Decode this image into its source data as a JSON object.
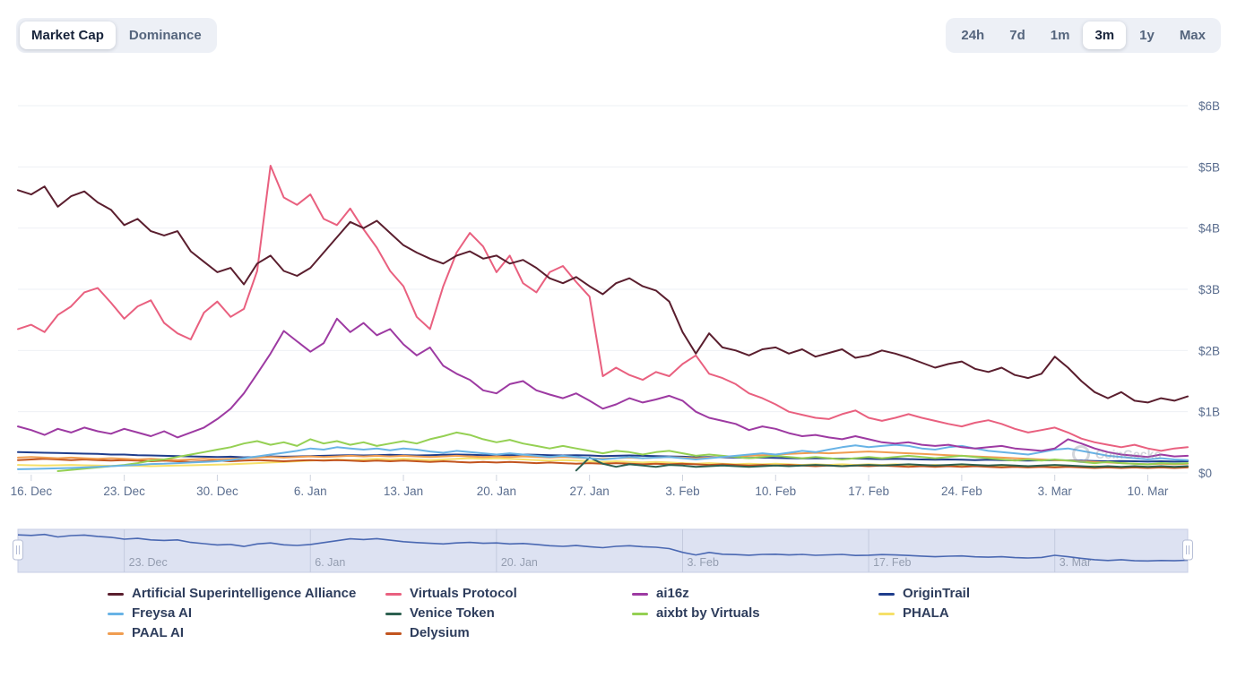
{
  "view_toggle": {
    "options": [
      {
        "label": "Market Cap",
        "active": true
      },
      {
        "label": "Dominance",
        "active": false
      }
    ]
  },
  "range_toggle": {
    "options": [
      {
        "label": "24h",
        "active": false
      },
      {
        "label": "7d",
        "active": false
      },
      {
        "label": "1m",
        "active": false
      },
      {
        "label": "3m",
        "active": true
      },
      {
        "label": "1y",
        "active": false
      },
      {
        "label": "Max",
        "active": false
      }
    ]
  },
  "watermark": {
    "label": "CoinGecko"
  },
  "colors": {
    "grid": "#eef0f4",
    "axis_label": "#5b6e8f",
    "tick": "#cdd3de",
    "legend_text": "#2e3d5c",
    "nav_bg": "#dde2f2",
    "nav_border": "#c7cde4",
    "nav_line": "#4a68b2",
    "nav_label": "#949db0",
    "nav_grid": "#c3cade",
    "handle_fill": "#ffffff",
    "handle_border": "#b6bed6"
  },
  "chart_data": {
    "type": "line",
    "title": "",
    "xlabel": "",
    "ylabel": "",
    "y_unit": "USD billions",
    "ylim": [
      0,
      6.2
    ],
    "grid": true,
    "legend_position": "bottom",
    "points_per_series": 89,
    "x_start": "15. Dec",
    "x_end": "13. Mar",
    "y_ticks": [
      {
        "v": 0,
        "label": "$0"
      },
      {
        "v": 1,
        "label": "$1B"
      },
      {
        "v": 2,
        "label": "$2B"
      },
      {
        "v": 3,
        "label": "$3B"
      },
      {
        "v": 4,
        "label": "$4B"
      },
      {
        "v": 5,
        "label": "$5B"
      },
      {
        "v": 6,
        "label": "$6B"
      }
    ],
    "x_ticks": [
      {
        "i": 1,
        "label": "16. Dec"
      },
      {
        "i": 8,
        "label": "23. Dec"
      },
      {
        "i": 15,
        "label": "30. Dec"
      },
      {
        "i": 22,
        "label": "6. Jan"
      },
      {
        "i": 29,
        "label": "13. Jan"
      },
      {
        "i": 36,
        "label": "20. Jan"
      },
      {
        "i": 43,
        "label": "27. Jan"
      },
      {
        "i": 50,
        "label": "3. Feb"
      },
      {
        "i": 57,
        "label": "10. Feb"
      },
      {
        "i": 64,
        "label": "17. Feb"
      },
      {
        "i": 71,
        "label": "24. Feb"
      },
      {
        "i": 78,
        "label": "3. Mar"
      },
      {
        "i": 85,
        "label": "10. Mar"
      }
    ],
    "legend_columns": [
      [
        0,
        4,
        8
      ],
      [
        1,
        5,
        9
      ],
      [
        2,
        6
      ],
      [
        3,
        7
      ]
    ],
    "series": [
      {
        "name": "Artificial Superintelligence Alliance",
        "color": "#5a1e2e",
        "values": [
          4.62,
          4.55,
          4.68,
          4.35,
          4.52,
          4.6,
          4.42,
          4.3,
          4.05,
          4.15,
          3.95,
          3.88,
          3.95,
          3.62,
          3.45,
          3.28,
          3.35,
          3.08,
          3.42,
          3.55,
          3.3,
          3.22,
          3.35,
          3.6,
          3.85,
          4.1,
          4.0,
          4.12,
          3.92,
          3.72,
          3.6,
          3.5,
          3.42,
          3.55,
          3.62,
          3.5,
          3.55,
          3.42,
          3.48,
          3.35,
          3.18,
          3.1,
          3.2,
          3.05,
          2.92,
          3.1,
          3.18,
          3.05,
          2.98,
          2.8,
          2.3,
          1.95,
          2.28,
          2.05,
          2.0,
          1.92,
          2.02,
          2.05,
          1.95,
          2.02,
          1.9,
          1.96,
          2.02,
          1.88,
          1.92,
          2.0,
          1.95,
          1.88,
          1.8,
          1.72,
          1.78,
          1.82,
          1.7,
          1.65,
          1.72,
          1.6,
          1.55,
          1.62,
          1.9,
          1.72,
          1.5,
          1.32,
          1.22,
          1.32,
          1.18,
          1.15,
          1.22,
          1.18,
          1.25
        ]
      },
      {
        "name": "Virtuals Protocol",
        "color": "#e9607f",
        "values": [
          2.35,
          2.42,
          2.3,
          2.58,
          2.72,
          2.95,
          3.02,
          2.78,
          2.52,
          2.72,
          2.82,
          2.45,
          2.28,
          2.18,
          2.62,
          2.8,
          2.55,
          2.68,
          3.3,
          5.02,
          4.5,
          4.38,
          4.55,
          4.15,
          4.05,
          4.32,
          3.98,
          3.68,
          3.3,
          3.05,
          2.55,
          2.35,
          3.05,
          3.6,
          3.92,
          3.7,
          3.28,
          3.55,
          3.1,
          2.95,
          3.28,
          3.38,
          3.12,
          2.88,
          1.58,
          1.72,
          1.6,
          1.52,
          1.65,
          1.58,
          1.78,
          1.92,
          1.62,
          1.55,
          1.45,
          1.3,
          1.22,
          1.12,
          1.0,
          0.95,
          0.9,
          0.88,
          0.96,
          1.02,
          0.9,
          0.85,
          0.9,
          0.96,
          0.9,
          0.85,
          0.8,
          0.76,
          0.82,
          0.86,
          0.8,
          0.72,
          0.66,
          0.7,
          0.74,
          0.66,
          0.56,
          0.5,
          0.46,
          0.42,
          0.46,
          0.4,
          0.36,
          0.4,
          0.42
        ]
      },
      {
        "name": "ai16z",
        "color": "#9d3aa2",
        "values": [
          0.76,
          0.7,
          0.62,
          0.72,
          0.66,
          0.74,
          0.68,
          0.64,
          0.72,
          0.66,
          0.6,
          0.68,
          0.58,
          0.66,
          0.74,
          0.88,
          1.05,
          1.3,
          1.62,
          1.95,
          2.32,
          2.15,
          1.98,
          2.12,
          2.52,
          2.3,
          2.45,
          2.25,
          2.35,
          2.1,
          1.92,
          2.05,
          1.75,
          1.62,
          1.52,
          1.35,
          1.3,
          1.45,
          1.5,
          1.35,
          1.28,
          1.22,
          1.3,
          1.18,
          1.05,
          1.12,
          1.22,
          1.15,
          1.2,
          1.26,
          1.18,
          1.0,
          0.9,
          0.85,
          0.8,
          0.7,
          0.76,
          0.72,
          0.65,
          0.6,
          0.62,
          0.58,
          0.55,
          0.6,
          0.55,
          0.5,
          0.48,
          0.5,
          0.46,
          0.44,
          0.46,
          0.42,
          0.4,
          0.42,
          0.44,
          0.4,
          0.38,
          0.36,
          0.4,
          0.55,
          0.48,
          0.4,
          0.34,
          0.3,
          0.28,
          0.26,
          0.3,
          0.27,
          0.28
        ]
      },
      {
        "name": "OriginTrail",
        "color": "#1f3d8c",
        "values": [
          0.34,
          0.335,
          0.33,
          0.325,
          0.32,
          0.315,
          0.31,
          0.3,
          0.3,
          0.29,
          0.285,
          0.28,
          0.275,
          0.27,
          0.265,
          0.26,
          0.265,
          0.255,
          0.26,
          0.27,
          0.265,
          0.27,
          0.275,
          0.28,
          0.285,
          0.29,
          0.285,
          0.29,
          0.295,
          0.29,
          0.285,
          0.29,
          0.295,
          0.3,
          0.295,
          0.29,
          0.295,
          0.29,
          0.3,
          0.295,
          0.29,
          0.285,
          0.29,
          0.285,
          0.275,
          0.28,
          0.285,
          0.28,
          0.275,
          0.27,
          0.265,
          0.255,
          0.26,
          0.255,
          0.25,
          0.245,
          0.25,
          0.245,
          0.24,
          0.235,
          0.24,
          0.235,
          0.23,
          0.235,
          0.23,
          0.225,
          0.23,
          0.225,
          0.22,
          0.215,
          0.22,
          0.215,
          0.21,
          0.215,
          0.21,
          0.205,
          0.2,
          0.205,
          0.21,
          0.205,
          0.2,
          0.195,
          0.19,
          0.195,
          0.19,
          0.185,
          0.19,
          0.185,
          0.19
        ]
      },
      {
        "name": "Freysa AI",
        "color": "#68b3e6",
        "values": [
          0.06,
          0.065,
          0.07,
          0.075,
          0.08,
          0.09,
          0.1,
          0.11,
          0.12,
          0.13,
          0.145,
          0.15,
          0.16,
          0.17,
          0.18,
          0.19,
          0.21,
          0.24,
          0.27,
          0.3,
          0.33,
          0.36,
          0.4,
          0.38,
          0.42,
          0.4,
          0.38,
          0.4,
          0.37,
          0.4,
          0.38,
          0.35,
          0.33,
          0.36,
          0.34,
          0.32,
          0.3,
          0.32,
          0.3,
          0.28,
          0.26,
          0.28,
          0.26,
          0.24,
          0.22,
          0.24,
          0.26,
          0.24,
          0.25,
          0.26,
          0.24,
          0.22,
          0.24,
          0.26,
          0.28,
          0.3,
          0.32,
          0.3,
          0.33,
          0.36,
          0.34,
          0.38,
          0.42,
          0.45,
          0.42,
          0.44,
          0.46,
          0.44,
          0.4,
          0.38,
          0.42,
          0.44,
          0.4,
          0.36,
          0.34,
          0.32,
          0.3,
          0.34,
          0.38,
          0.4,
          0.36,
          0.32,
          0.28,
          0.26,
          0.24,
          0.22,
          0.24,
          0.22,
          0.21
        ]
      },
      {
        "name": "Venice Token",
        "color": "#2d6050",
        "values": [
          null,
          null,
          null,
          null,
          null,
          null,
          null,
          null,
          null,
          null,
          null,
          null,
          null,
          null,
          null,
          null,
          null,
          null,
          null,
          null,
          null,
          null,
          null,
          null,
          null,
          null,
          null,
          null,
          null,
          null,
          null,
          null,
          null,
          null,
          null,
          null,
          null,
          null,
          null,
          null,
          null,
          null,
          0.04,
          0.25,
          0.15,
          0.1,
          0.14,
          0.12,
          0.1,
          0.13,
          0.12,
          0.1,
          0.11,
          0.12,
          0.11,
          0.1,
          0.11,
          0.12,
          0.11,
          0.12,
          0.13,
          0.12,
          0.11,
          0.12,
          0.13,
          0.12,
          0.13,
          0.14,
          0.13,
          0.12,
          0.13,
          0.14,
          0.13,
          0.12,
          0.13,
          0.12,
          0.11,
          0.12,
          0.13,
          0.12,
          0.11,
          0.1,
          0.11,
          0.1,
          0.11,
          0.1,
          0.11,
          0.1,
          0.11
        ]
      },
      {
        "name": "aixbt by Virtuals",
        "color": "#95d053",
        "values": [
          null,
          null,
          null,
          0.03,
          0.05,
          0.07,
          0.09,
          0.11,
          0.13,
          0.16,
          0.2,
          0.22,
          0.26,
          0.3,
          0.34,
          0.38,
          0.42,
          0.48,
          0.52,
          0.46,
          0.5,
          0.44,
          0.55,
          0.48,
          0.52,
          0.46,
          0.5,
          0.44,
          0.48,
          0.52,
          0.48,
          0.55,
          0.6,
          0.66,
          0.62,
          0.55,
          0.5,
          0.54,
          0.48,
          0.44,
          0.4,
          0.44,
          0.4,
          0.36,
          0.32,
          0.36,
          0.34,
          0.3,
          0.34,
          0.36,
          0.32,
          0.28,
          0.3,
          0.28,
          0.26,
          0.24,
          0.26,
          0.28,
          0.26,
          0.24,
          0.26,
          0.24,
          0.22,
          0.24,
          0.26,
          0.24,
          0.26,
          0.28,
          0.26,
          0.24,
          0.26,
          0.28,
          0.26,
          0.24,
          0.22,
          0.2,
          0.22,
          0.2,
          0.22,
          0.2,
          0.18,
          0.16,
          0.18,
          0.16,
          0.15,
          0.14,
          0.16,
          0.15,
          0.16
        ]
      },
      {
        "name": "PHALA",
        "color": "#f6e069",
        "values": [
          0.13,
          0.125,
          0.12,
          0.125,
          0.13,
          0.125,
          0.12,
          0.115,
          0.12,
          0.115,
          0.11,
          0.115,
          0.12,
          0.125,
          0.13,
          0.135,
          0.14,
          0.15,
          0.16,
          0.17,
          0.18,
          0.19,
          0.2,
          0.21,
          0.22,
          0.21,
          0.22,
          0.23,
          0.22,
          0.23,
          0.22,
          0.21,
          0.22,
          0.23,
          0.24,
          0.23,
          0.24,
          0.23,
          0.22,
          0.21,
          0.2,
          0.21,
          0.2,
          0.19,
          0.18,
          0.19,
          0.18,
          0.17,
          0.18,
          0.17,
          0.16,
          0.15,
          0.16,
          0.15,
          0.14,
          0.15,
          0.14,
          0.15,
          0.14,
          0.13,
          0.14,
          0.13,
          0.14,
          0.13,
          0.14,
          0.13,
          0.14,
          0.13,
          0.12,
          0.13,
          0.12,
          0.13,
          0.12,
          0.11,
          0.12,
          0.11,
          0.1,
          0.11,
          0.12,
          0.11,
          0.1,
          0.11,
          0.1,
          0.09,
          0.1,
          0.09,
          0.1,
          0.09,
          0.1
        ]
      },
      {
        "name": "PAAL AI",
        "color": "#f09d50",
        "values": [
          0.25,
          0.26,
          0.25,
          0.24,
          0.25,
          0.24,
          0.23,
          0.24,
          0.23,
          0.22,
          0.23,
          0.22,
          0.21,
          0.22,
          0.23,
          0.22,
          0.23,
          0.24,
          0.25,
          0.26,
          0.25,
          0.26,
          0.27,
          0.26,
          0.27,
          0.28,
          0.27,
          0.28,
          0.27,
          0.28,
          0.27,
          0.26,
          0.27,
          0.28,
          0.27,
          0.26,
          0.27,
          0.26,
          0.27,
          0.26,
          0.25,
          0.26,
          0.25,
          0.24,
          0.23,
          0.24,
          0.25,
          0.24,
          0.25,
          0.26,
          0.25,
          0.24,
          0.25,
          0.26,
          0.27,
          0.28,
          0.29,
          0.3,
          0.31,
          0.32,
          0.33,
          0.32,
          0.33,
          0.34,
          0.35,
          0.34,
          0.33,
          0.32,
          0.31,
          0.3,
          0.29,
          0.28,
          0.27,
          0.26,
          0.25,
          0.24,
          0.23,
          0.22,
          0.21,
          0.2,
          0.19,
          0.18,
          0.17,
          0.16,
          0.15,
          0.14,
          0.15,
          0.14,
          0.15
        ]
      },
      {
        "name": "Delysium",
        "color": "#c2541f",
        "values": [
          0.21,
          0.22,
          0.23,
          0.22,
          0.21,
          0.22,
          0.21,
          0.2,
          0.21,
          0.2,
          0.19,
          0.2,
          0.19,
          0.18,
          0.19,
          0.2,
          0.19,
          0.2,
          0.21,
          0.2,
          0.19,
          0.2,
          0.21,
          0.2,
          0.21,
          0.2,
          0.19,
          0.2,
          0.19,
          0.2,
          0.19,
          0.18,
          0.19,
          0.18,
          0.17,
          0.18,
          0.17,
          0.18,
          0.17,
          0.16,
          0.17,
          0.16,
          0.15,
          0.16,
          0.15,
          0.16,
          0.15,
          0.14,
          0.15,
          0.14,
          0.15,
          0.14,
          0.13,
          0.14,
          0.13,
          0.12,
          0.13,
          0.12,
          0.13,
          0.12,
          0.11,
          0.12,
          0.11,
          0.12,
          0.11,
          0.12,
          0.11,
          0.1,
          0.11,
          0.1,
          0.11,
          0.1,
          0.11,
          0.1,
          0.09,
          0.1,
          0.09,
          0.1,
          0.09,
          0.1,
          0.09,
          0.08,
          0.09,
          0.08,
          0.09,
          0.08,
          0.09,
          0.08,
          0.09
        ]
      }
    ]
  },
  "navigator": {
    "source_series": 0,
    "ticks": [
      {
        "i": 8,
        "label": "23. Dec"
      },
      {
        "i": 22,
        "label": "6. Jan"
      },
      {
        "i": 36,
        "label": "20. Jan"
      },
      {
        "i": 50,
        "label": "3. Feb"
      },
      {
        "i": 64,
        "label": "17. Feb"
      },
      {
        "i": 78,
        "label": "3. Mar"
      }
    ]
  }
}
